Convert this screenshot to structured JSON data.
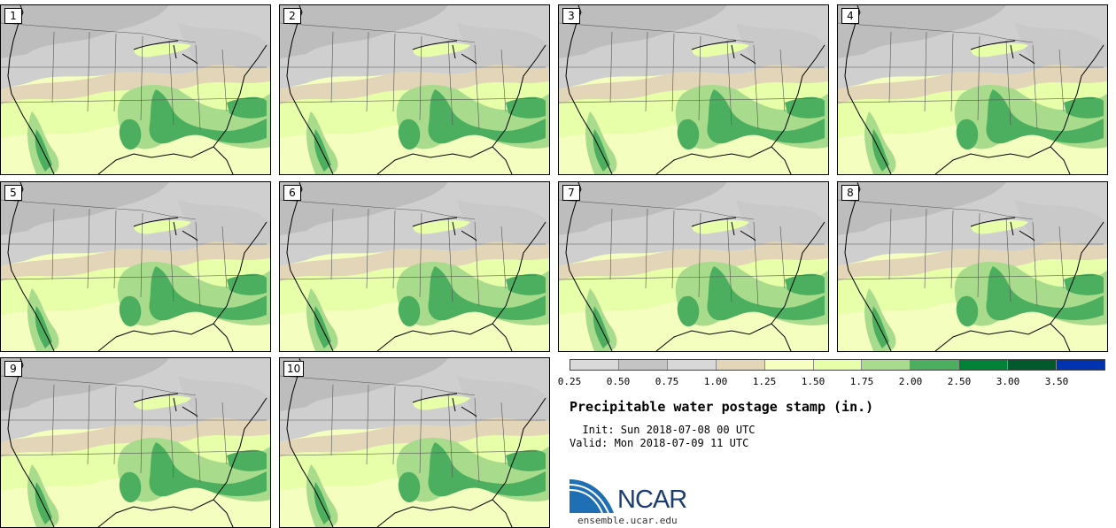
{
  "panels": [
    "1",
    "2",
    "3",
    "4",
    "5",
    "6",
    "7",
    "8",
    "9",
    "10"
  ],
  "colorbar": {
    "colors": [
      "#d9d9d9",
      "#c4c4c4",
      "#d8d8d8",
      "#e3d6b8",
      "#f6ffbf",
      "#e6ffa8",
      "#a8dc8c",
      "#4caf60",
      "#008238",
      "#005a2b",
      "#0033b0"
    ],
    "ticks": [
      "0.25",
      "0.50",
      "0.75",
      "1.00",
      "1.25",
      "1.50",
      "1.75",
      "2.00",
      "2.50",
      "3.00",
      "3.50"
    ]
  },
  "title": "Precipitable water postage stamp (in.)",
  "init": "  Init: Sun 2018-07-08 00 UTC",
  "valid": "Valid: Mon 2018-07-09 11 UTC",
  "logo": {
    "text": "NCAR",
    "site": "ensemble.ucar.edu"
  }
}
